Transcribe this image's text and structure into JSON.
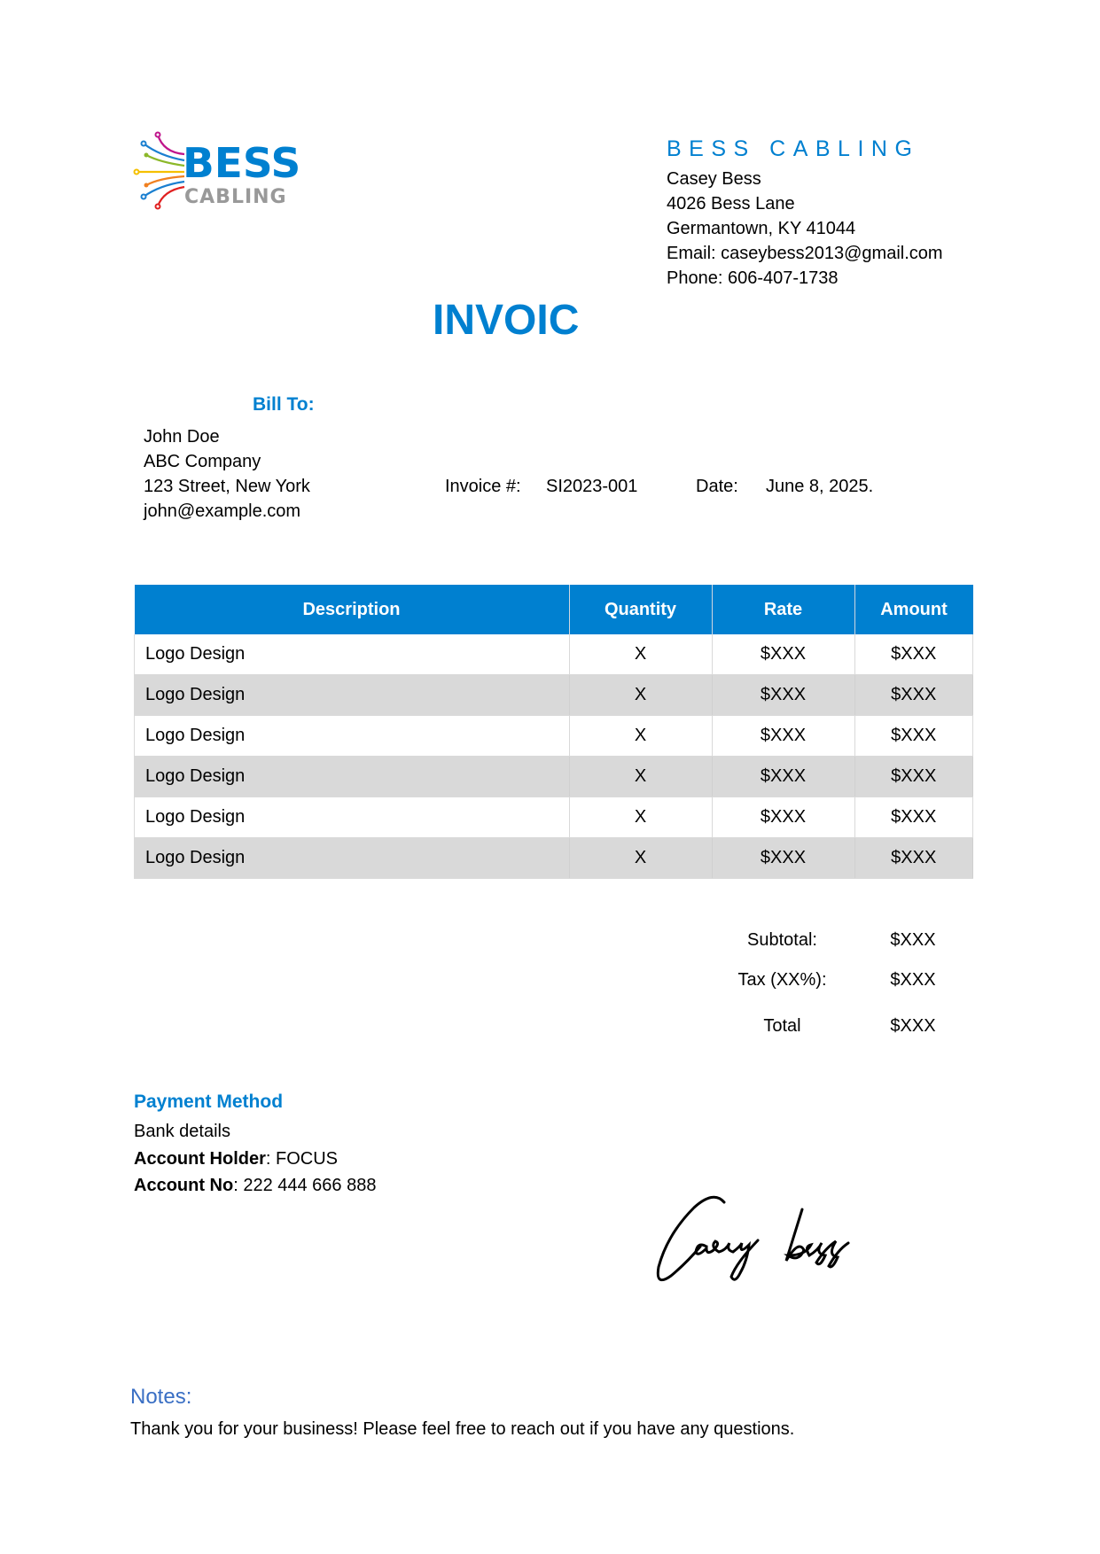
{
  "logo": {
    "text_top": "BESS",
    "text_bottom": "CABLING"
  },
  "company": {
    "name": "BESS CABLING",
    "contact": "Casey Bess",
    "address1": "4026 Bess Lane",
    "address2": "Germantown, KY 41044",
    "email": "Email: caseybess2013@gmail.com",
    "phone": "Phone: 606-407-1738"
  },
  "title": "INVOIC",
  "bill_to": {
    "label": "Bill To:",
    "name": "John Doe",
    "company": "ABC Company",
    "address": "123 Street, New York",
    "email": "john@example.com"
  },
  "invoice": {
    "number_label": "Invoice #:",
    "number": "SI2023-001",
    "date_label": "Date:",
    "date": "June 8, 2025."
  },
  "table": {
    "headers": [
      "Description",
      "Quantity",
      "Rate",
      "Amount"
    ],
    "rows": [
      [
        "Logo Design",
        "X",
        "$XXX",
        "$XXX"
      ],
      [
        "Logo Design",
        "X",
        "$XXX",
        "$XXX"
      ],
      [
        "Logo Design",
        "X",
        "$XXX",
        "$XXX"
      ],
      [
        "Logo Design",
        "X",
        "$XXX",
        "$XXX"
      ],
      [
        "Logo Design",
        "X",
        "$XXX",
        "$XXX"
      ],
      [
        "Logo Design",
        "X",
        "$XXX",
        "$XXX"
      ]
    ]
  },
  "totals": {
    "subtotal_label": "Subtotal:",
    "subtotal": "$XXX",
    "tax_label": "Tax (XX%):",
    "tax": "$XXX",
    "total_label": "Total",
    "total": "$XXX"
  },
  "payment": {
    "title": "Payment Method",
    "bank": "Bank details",
    "holder_label": "Account Holder",
    "holder": ": FOCUS",
    "account_label": "Account No",
    "account": ": 222 444 666 888"
  },
  "signature": "Casey bess",
  "notes": {
    "title": "Notes:",
    "text": "Thank you for your business! Please feel free to reach out if you have any questions."
  },
  "colors": {
    "accent": "#0080d0",
    "row_alt": "#d9d9d9"
  }
}
